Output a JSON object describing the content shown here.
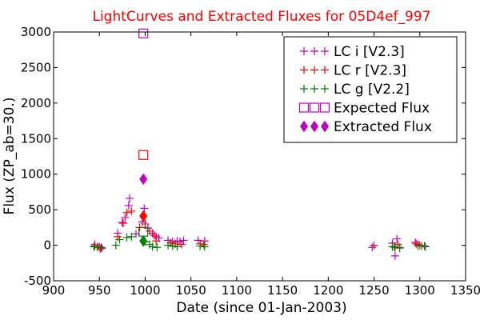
{
  "chart_data": {
    "type": "scatter",
    "title": "LightCurves and Extracted Fluxes for 05D4ef_997",
    "xlabel": "Date (since 01-Jan-2003)",
    "ylabel": "Flux (ZP_ab=30.)",
    "xlim": [
      900,
      1350
    ],
    "ylim": [
      -500,
      3000
    ],
    "xticks": [
      900,
      950,
      1000,
      1050,
      1100,
      1150,
      1200,
      1250,
      1300,
      1350
    ],
    "yticks": [
      -500,
      0,
      500,
      1000,
      1500,
      2000,
      2500,
      3000
    ],
    "grid": false,
    "legend_position": "top-right",
    "series": [
      {
        "name": "LC i [V2.3]",
        "marker": "plus",
        "color": "#bf00bf",
        "points": [
          [
            945,
            10
          ],
          [
            950,
            -20
          ],
          [
            953,
            -40
          ],
          [
            970,
            170
          ],
          [
            975,
            320
          ],
          [
            978,
            390
          ],
          [
            982,
            560
          ],
          [
            983,
            660
          ],
          [
            990,
            160
          ],
          [
            997,
            330
          ],
          [
            999,
            520
          ],
          [
            1003,
            240
          ],
          [
            1008,
            170
          ],
          [
            1012,
            120
          ],
          [
            1015,
            100
          ],
          [
            1025,
            70
          ],
          [
            1030,
            50
          ],
          [
            1035,
            60
          ],
          [
            1038,
            50
          ],
          [
            1042,
            70
          ],
          [
            1058,
            70
          ],
          [
            1065,
            60
          ],
          [
            1248,
            -30
          ],
          [
            1270,
            30
          ],
          [
            1273,
            -150
          ],
          [
            1275,
            90
          ],
          [
            1278,
            -40
          ],
          [
            1295,
            40
          ],
          [
            1298,
            10
          ],
          [
            1305,
            -10
          ]
        ]
      },
      {
        "name": "LC r [V2.3]",
        "marker": "plus",
        "color": "#ff0000",
        "points": [
          [
            945,
            -10
          ],
          [
            948,
            -20
          ],
          [
            951,
            -50
          ],
          [
            970,
            120
          ],
          [
            976,
            310
          ],
          [
            980,
            460
          ],
          [
            985,
            480
          ],
          [
            994,
            250
          ],
          [
            1000,
            300
          ],
          [
            1005,
            200
          ],
          [
            1010,
            140
          ],
          [
            1012,
            60
          ],
          [
            1028,
            30
          ],
          [
            1033,
            20
          ],
          [
            1040,
            10
          ],
          [
            1060,
            20
          ],
          [
            1064,
            10
          ],
          [
            1250,
            0
          ],
          [
            1272,
            -20
          ],
          [
            1276,
            10
          ],
          [
            1296,
            20
          ],
          [
            1300,
            0
          ]
        ]
      },
      {
        "name": "LC g [V2.2]",
        "marker": "plus",
        "color": "#008000",
        "points": [
          [
            944,
            -20
          ],
          [
            948,
            -30
          ],
          [
            952,
            -30
          ],
          [
            968,
            0
          ],
          [
            972,
            80
          ],
          [
            980,
            110
          ],
          [
            985,
            120
          ],
          [
            1000,
            50
          ],
          [
            1005,
            10
          ],
          [
            1008,
            -20
          ],
          [
            1013,
            -30
          ],
          [
            1025,
            0
          ],
          [
            1030,
            -10
          ],
          [
            1035,
            -20
          ],
          [
            1060,
            -10
          ],
          [
            1065,
            -20
          ],
          [
            1270,
            -20
          ],
          [
            1273,
            -30
          ],
          [
            1278,
            -30
          ],
          [
            1298,
            -10
          ],
          [
            1302,
            -10
          ],
          [
            1306,
            -20
          ]
        ]
      },
      {
        "name": "Expected Flux",
        "marker": "square",
        "color": "#bf00bf",
        "points": [
          [
            998,
            2980
          ]
        ],
        "extra": [
          {
            "color": "#ff0000",
            "x": 998,
            "y": 1270
          },
          {
            "color": "#008000",
            "x": 998,
            "y": 190
          }
        ]
      },
      {
        "name": "Extracted Flux",
        "marker": "diamond",
        "color": "#bf00bf",
        "points": [
          [
            998,
            930
          ]
        ],
        "extra": [
          {
            "color": "#ff0000",
            "x": 998,
            "y": 410
          },
          {
            "color": "#008000",
            "x": 998,
            "y": 60
          }
        ]
      }
    ]
  }
}
